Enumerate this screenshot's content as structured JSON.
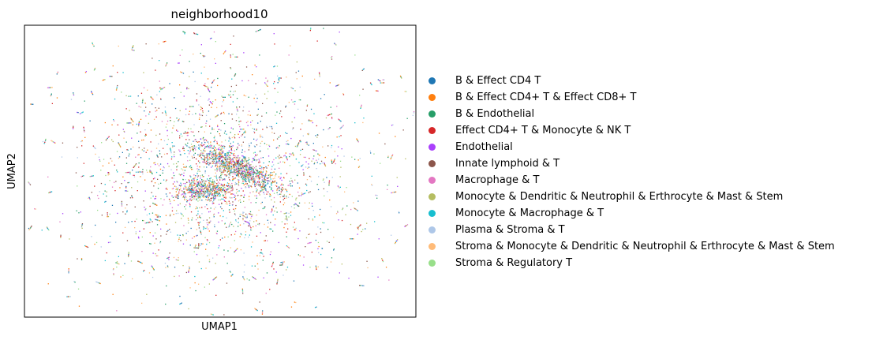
{
  "chart_data": {
    "type": "scatter",
    "title": "neighborhood10",
    "xlabel": "UMAP1",
    "ylabel": "UMAP2",
    "x_ticks": "none",
    "y_ticks": "none",
    "grid": false,
    "legend_position": "right",
    "series": [
      {
        "name": "B & Effect CD4 T",
        "color": "#1f77b4"
      },
      {
        "name": "B & Effect CD4+ T & Effect CD8+ T",
        "color": "#ff7f0e"
      },
      {
        "name": "B & Endothelial",
        "color": "#279e68"
      },
      {
        "name": "Effect CD4+ T & Monocyte & NK T",
        "color": "#d62728"
      },
      {
        "name": "Endothelial",
        "color": "#aa40fc"
      },
      {
        "name": "Innate lymphoid & T",
        "color": "#8c564b"
      },
      {
        "name": "Macrophage & T",
        "color": "#e377c2"
      },
      {
        "name": "Monocyte & Dendritic & Neutrophil & Erthrocyte & Mast & Stem",
        "color": "#b5bd61"
      },
      {
        "name": "Monocyte & Macrophage & T",
        "color": "#17becf"
      },
      {
        "name": "Plasma & Stroma & T",
        "color": "#aec7e8"
      },
      {
        "name": "Stroma & Monocyte & Dendritic & Neutrophil & Erthrocyte & Mast & Stem",
        "color": "#ffbb78"
      },
      {
        "name": "Stroma & Regulatory T",
        "color": "#98df8a"
      }
    ]
  }
}
